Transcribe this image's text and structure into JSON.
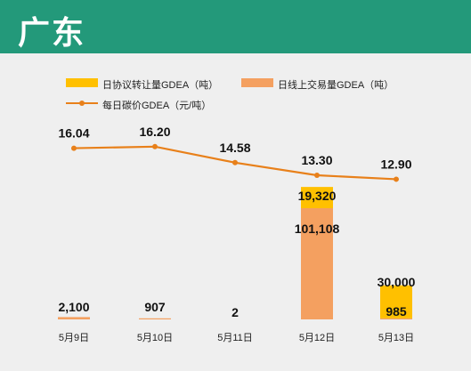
{
  "header": {
    "title": "广东"
  },
  "chart_data": {
    "type": "bar",
    "categories": [
      "5月9日",
      "5月10日",
      "5月11日",
      "5月12日",
      "5月13日"
    ],
    "legend": [
      {
        "label": "日协议转让量GDEA（吨）",
        "color": "#ffc000",
        "kind": "bar"
      },
      {
        "label": "日线上交易量GDEA（吨）",
        "color": "#f4a060",
        "kind": "bar"
      },
      {
        "label": "每日碳价GDEA（元/吨）",
        "color": "#e8801a",
        "kind": "line"
      }
    ],
    "series": [
      {
        "name": "日协议转让量GDEA（吨）",
        "type": "bar",
        "color": "#ffc000",
        "values": [
          0,
          0,
          0,
          19320,
          30000
        ],
        "labels": [
          "",
          "",
          "",
          "19,320",
          "30,000"
        ]
      },
      {
        "name": "日线上交易量GDEA（吨）",
        "type": "bar",
        "color": "#f4a060",
        "values": [
          2100,
          907,
          2,
          101108,
          985
        ],
        "labels": [
          "2,100",
          "907",
          "2",
          "101,108",
          "985"
        ]
      },
      {
        "name": "每日碳价GDEA（元/吨）",
        "type": "line",
        "color": "#e8801a",
        "values": [
          16.04,
          16.2,
          14.58,
          13.3,
          12.9
        ],
        "labels": [
          "16.04",
          "16.20",
          "14.58",
          "13.30",
          "12.90"
        ]
      }
    ]
  }
}
